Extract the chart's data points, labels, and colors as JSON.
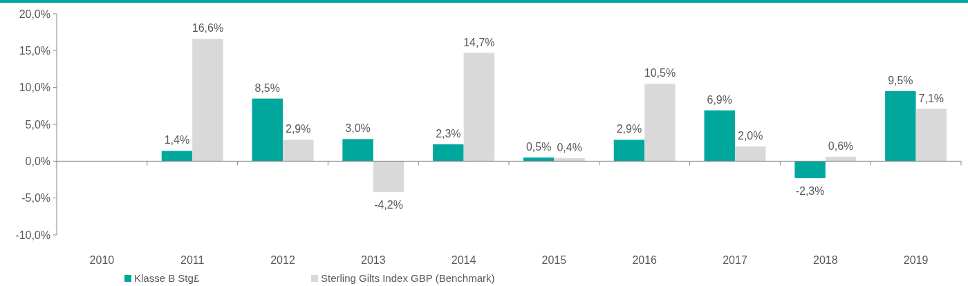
{
  "chart_data": {
    "type": "bar",
    "categories": [
      "2010",
      "2011",
      "2012",
      "2013",
      "2014",
      "2015",
      "2016",
      "2017",
      "2018",
      "2019"
    ],
    "series": [
      {
        "name": "Klasse B Stg£",
        "color": "#00a79d",
        "values": [
          null,
          1.4,
          8.5,
          3.0,
          2.3,
          0.5,
          2.9,
          6.9,
          -2.3,
          9.5
        ],
        "value_labels": [
          null,
          "1,4%",
          "8,5%",
          "3,0%",
          "2,3%",
          "0,5%",
          "2,9%",
          "6,9%",
          "-2,3%",
          "9,5%"
        ]
      },
      {
        "name": "Sterling Gilts Index GBP (Benchmark)",
        "color": "#d9d9d9",
        "values": [
          null,
          16.6,
          2.9,
          -4.2,
          14.7,
          0.4,
          10.5,
          2.0,
          0.6,
          7.1
        ],
        "value_labels": [
          null,
          "16,6%",
          "2,9%",
          "-4,2%",
          "14,7%",
          "0,4%",
          "10,5%",
          "2,0%",
          "0,6%",
          "7,1%"
        ]
      }
    ],
    "ylim": [
      -10,
      20
    ],
    "yticks": [
      {
        "value": -10,
        "label": "-10,0%"
      },
      {
        "value": -5,
        "label": "-5,0%"
      },
      {
        "value": 0,
        "label": "0,0%"
      },
      {
        "value": 5,
        "label": "5,0%"
      },
      {
        "value": 10,
        "label": "10,0%"
      },
      {
        "value": 15,
        "label": "15,0%"
      },
      {
        "value": 20,
        "label": "20,0%"
      }
    ],
    "legend": "bottom"
  }
}
